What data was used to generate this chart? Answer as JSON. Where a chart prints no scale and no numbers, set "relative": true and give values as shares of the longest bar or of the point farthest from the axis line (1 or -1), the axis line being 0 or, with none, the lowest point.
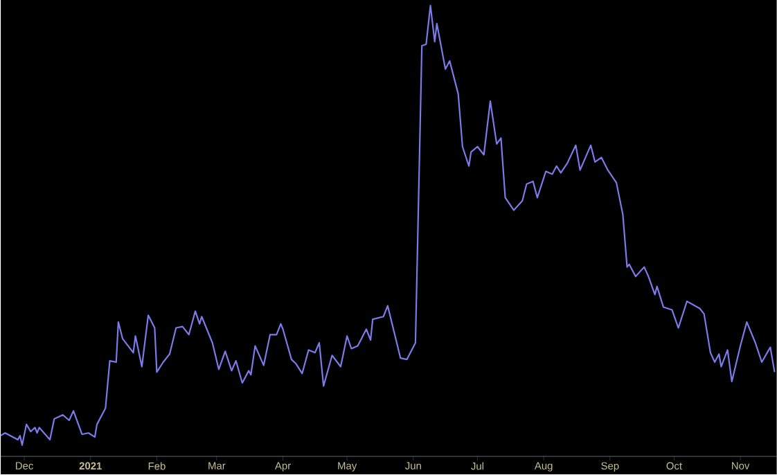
{
  "chart_data": {
    "type": "line",
    "relative": true,
    "color": "#7b7bea",
    "xlim": [
      "2020-11-20",
      "2021-11-18"
    ],
    "xticks": [
      {
        "value": "2020-12-01",
        "label": "Dec"
      },
      {
        "value": "2021-01-01",
        "label": "2021"
      },
      {
        "value": "2021-02-01",
        "label": "Feb"
      },
      {
        "value": "2021-03-01",
        "label": "Mar"
      },
      {
        "value": "2021-04-01",
        "label": "Apr"
      },
      {
        "value": "2021-05-01",
        "label": "May"
      },
      {
        "value": "2021-06-01",
        "label": "Jun"
      },
      {
        "value": "2021-07-01",
        "label": "Jul"
      },
      {
        "value": "2021-08-01",
        "label": "Aug"
      },
      {
        "value": "2021-09-01",
        "label": "Sep"
      },
      {
        "value": "2021-10-01",
        "label": "Oct"
      },
      {
        "value": "2021-11-01",
        "label": "Nov"
      }
    ],
    "x": [
      "2020-11-20",
      "2020-11-22",
      "2020-11-28",
      "2020-11-29",
      "2020-11-30",
      "2020-12-02",
      "2020-12-04",
      "2020-12-06",
      "2020-12-07",
      "2020-12-08",
      "2020-12-13",
      "2020-12-15",
      "2020-12-19",
      "2020-12-22",
      "2020-12-24",
      "2020-12-28",
      "2020-12-31",
      "2021-01-03",
      "2021-01-04",
      "2021-01-08",
      "2021-01-10",
      "2021-01-13",
      "2021-01-14",
      "2021-01-16",
      "2021-01-21",
      "2021-01-22",
      "2021-01-25",
      "2021-01-28",
      "2021-01-31",
      "2021-02-01",
      "2021-02-04",
      "2021-02-07",
      "2021-02-10",
      "2021-02-13",
      "2021-02-16",
      "2021-02-19",
      "2021-02-21",
      "2021-02-22",
      "2021-02-27",
      "2021-03-02",
      "2021-03-05",
      "2021-03-08",
      "2021-03-10",
      "2021-03-13",
      "2021-03-16",
      "2021-03-17",
      "2021-03-19",
      "2021-03-23",
      "2021-03-26",
      "2021-03-29",
      "2021-03-31",
      "2021-04-01",
      "2021-04-05",
      "2021-04-07",
      "2021-04-10",
      "2021-04-13",
      "2021-04-16",
      "2021-04-18",
      "2021-04-20",
      "2021-04-24",
      "2021-04-28",
      "2021-05-01",
      "2021-05-03",
      "2021-05-06",
      "2021-05-10",
      "2021-05-12",
      "2021-05-13",
      "2021-05-18",
      "2021-05-20",
      "2021-05-26",
      "2021-05-29",
      "2021-06-02",
      "2021-06-05",
      "2021-06-07",
      "2021-06-09",
      "2021-06-11",
      "2021-06-12",
      "2021-06-16",
      "2021-06-18",
      "2021-06-22",
      "2021-06-24",
      "2021-06-27",
      "2021-06-28",
      "2021-07-01",
      "2021-07-04",
      "2021-07-07",
      "2021-07-10",
      "2021-07-12",
      "2021-07-14",
      "2021-07-18",
      "2021-07-22",
      "2021-07-24",
      "2021-07-27",
      "2021-07-29",
      "2021-08-02",
      "2021-08-05",
      "2021-08-07",
      "2021-08-09",
      "2021-08-12",
      "2021-08-16",
      "2021-08-18",
      "2021-08-23",
      "2021-08-25",
      "2021-08-28",
      "2021-08-31",
      "2021-09-04",
      "2021-09-07",
      "2021-09-09",
      "2021-09-10",
      "2021-09-13",
      "2021-09-17",
      "2021-09-19",
      "2021-09-22",
      "2021-09-23",
      "2021-09-26",
      "2021-09-30",
      "2021-10-03",
      "2021-10-07",
      "2021-10-13",
      "2021-10-15",
      "2021-10-18",
      "2021-10-20",
      "2021-10-22",
      "2021-10-23",
      "2021-10-26",
      "2021-10-28",
      "2021-11-01",
      "2021-11-04",
      "2021-11-08",
      "2021-11-11",
      "2021-11-15",
      "2021-11-17"
    ],
    "values": [
      0.046,
      0.052,
      0.037,
      0.046,
      0.025,
      0.071,
      0.055,
      0.064,
      0.052,
      0.064,
      0.037,
      0.083,
      0.092,
      0.08,
      0.101,
      0.049,
      0.052,
      0.043,
      0.071,
      0.107,
      0.212,
      0.209,
      0.298,
      0.261,
      0.23,
      0.267,
      0.199,
      0.313,
      0.285,
      0.187,
      0.209,
      0.227,
      0.285,
      0.288,
      0.27,
      0.322,
      0.294,
      0.31,
      0.252,
      0.193,
      0.233,
      0.19,
      0.212,
      0.163,
      0.19,
      0.181,
      0.245,
      0.202,
      0.27,
      0.27,
      0.294,
      0.282,
      0.215,
      0.206,
      0.184,
      0.236,
      0.23,
      0.252,
      0.156,
      0.224,
      0.199,
      0.267,
      0.239,
      0.245,
      0.282,
      0.258,
      0.304,
      0.31,
      0.334,
      0.218,
      0.215,
      0.252,
      0.911,
      0.914,
      1.0,
      0.92,
      0.96,
      0.859,
      0.877,
      0.804,
      0.687,
      0.644,
      0.675,
      0.687,
      0.669,
      0.788,
      0.693,
      0.706,
      0.574,
      0.546,
      0.567,
      0.604,
      0.61,
      0.574,
      0.632,
      0.626,
      0.644,
      0.629,
      0.65,
      0.69,
      0.635,
      0.69,
      0.653,
      0.663,
      0.635,
      0.607,
      0.537,
      0.42,
      0.426,
      0.399,
      0.42,
      0.399,
      0.359,
      0.377,
      0.331,
      0.325,
      0.285,
      0.344,
      0.328,
      0.316,
      0.23,
      0.209,
      0.227,
      0.199,
      0.236,
      0.166,
      0.245,
      0.298,
      0.252,
      0.209,
      0.242,
      0.187
    ]
  }
}
